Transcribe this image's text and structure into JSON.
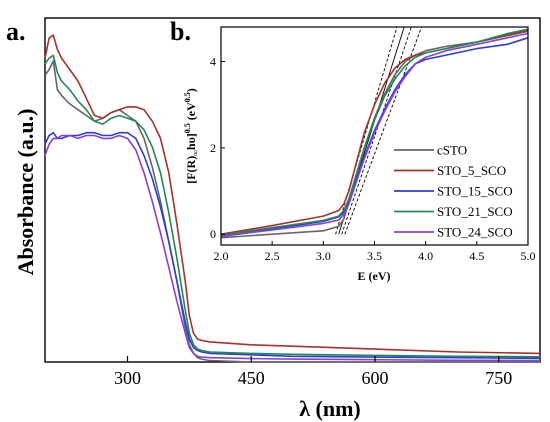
{
  "panel_labels": {
    "main": "a.",
    "inset": "b."
  },
  "chart_data": [
    {
      "type": "line",
      "xlabel": "λ (nm)",
      "ylabel": "Absorbance (a.u.)",
      "xlim": [
        200,
        800
      ],
      "ylim": [
        0,
        1.2
      ],
      "xticks": [
        300,
        450,
        600,
        750
      ],
      "yticks_shown": false,
      "series": [
        {
          "color": "#666666",
          "x": [
            200,
            205,
            210,
            215,
            220,
            230,
            240,
            250,
            260,
            270,
            280,
            290,
            300,
            310,
            320,
            330,
            340,
            350,
            360,
            370,
            375,
            380,
            385,
            390,
            400,
            450,
            500,
            600,
            700,
            800
          ],
          "y": [
            1.0,
            1.02,
            1.05,
            0.95,
            0.93,
            0.9,
            0.88,
            0.86,
            0.84,
            0.85,
            0.87,
            0.88,
            0.86,
            0.84,
            0.78,
            0.68,
            0.56,
            0.42,
            0.28,
            0.12,
            0.06,
            0.03,
            0.015,
            0.01,
            0.005,
            0.0,
            0.0,
            0.0,
            0.0,
            0.0
          ]
        },
        {
          "color": "#a83228",
          "x": [
            200,
            205,
            210,
            215,
            220,
            230,
            240,
            250,
            260,
            270,
            280,
            290,
            300,
            310,
            320,
            330,
            340,
            350,
            360,
            370,
            375,
            380,
            385,
            390,
            400,
            450,
            500,
            600,
            700,
            800
          ],
          "y": [
            1.06,
            1.13,
            1.14,
            1.09,
            1.06,
            1.02,
            0.98,
            0.92,
            0.86,
            0.85,
            0.87,
            0.88,
            0.89,
            0.89,
            0.88,
            0.84,
            0.78,
            0.66,
            0.48,
            0.28,
            0.16,
            0.1,
            0.08,
            0.075,
            0.07,
            0.06,
            0.055,
            0.045,
            0.035,
            0.03
          ]
        },
        {
          "color": "#2a3fd6",
          "x": [
            200,
            205,
            210,
            215,
            220,
            230,
            240,
            250,
            260,
            270,
            280,
            290,
            300,
            310,
            320,
            330,
            340,
            350,
            360,
            370,
            375,
            380,
            385,
            390,
            400,
            450,
            500,
            600,
            700,
            800
          ],
          "y": [
            0.76,
            0.79,
            0.8,
            0.78,
            0.78,
            0.79,
            0.79,
            0.8,
            0.8,
            0.79,
            0.79,
            0.8,
            0.8,
            0.78,
            0.72,
            0.64,
            0.54,
            0.42,
            0.28,
            0.14,
            0.08,
            0.05,
            0.04,
            0.035,
            0.03,
            0.025,
            0.02,
            0.017,
            0.015,
            0.013
          ]
        },
        {
          "color": "#1f8a55",
          "x": [
            200,
            205,
            210,
            215,
            220,
            230,
            240,
            250,
            260,
            270,
            280,
            290,
            300,
            310,
            320,
            330,
            340,
            350,
            360,
            370,
            375,
            380,
            385,
            390,
            400,
            450,
            500,
            600,
            700,
            800
          ],
          "y": [
            1.04,
            1.06,
            1.07,
            1.01,
            0.98,
            0.95,
            0.91,
            0.88,
            0.84,
            0.83,
            0.85,
            0.86,
            0.85,
            0.84,
            0.81,
            0.75,
            0.66,
            0.52,
            0.36,
            0.18,
            0.1,
            0.06,
            0.045,
            0.04,
            0.035,
            0.03,
            0.027,
            0.023,
            0.02,
            0.018
          ]
        },
        {
          "color": "#8a3ee0",
          "x": [
            200,
            205,
            210,
            215,
            220,
            230,
            240,
            250,
            260,
            270,
            280,
            290,
            300,
            310,
            320,
            330,
            340,
            350,
            360,
            370,
            375,
            380,
            385,
            390,
            400,
            450,
            500,
            600,
            700,
            800
          ],
          "y": [
            0.72,
            0.76,
            0.78,
            0.78,
            0.79,
            0.79,
            0.78,
            0.79,
            0.79,
            0.78,
            0.78,
            0.79,
            0.78,
            0.74,
            0.66,
            0.56,
            0.45,
            0.33,
            0.21,
            0.1,
            0.05,
            0.03,
            0.02,
            0.017,
            0.015,
            0.012,
            0.01,
            0.008,
            0.006,
            0.005
          ]
        }
      ]
    },
    {
      "type": "line",
      "xlabel": "E (eV)",
      "ylabel": "[F(R)∞hυ]^0.5 (eV^0.5)",
      "ylabel_parts": {
        "lead": "[F(R)",
        "sub": "∞",
        "mid": "hυ]",
        "sup1": "0.5",
        "unit": " (eV",
        "sup2": "0.5",
        "close": ")"
      },
      "xlim": [
        2.0,
        5.0
      ],
      "ylim": [
        -0.25,
        4.8
      ],
      "xticks": [
        2.0,
        2.5,
        3.0,
        3.5,
        4.0,
        4.5,
        5.0
      ],
      "yticks": [
        0,
        2,
        4
      ],
      "legend": {
        "position": "bottom-right",
        "entries": [
          "cSTO",
          "STO_5_SCO",
          "STO_15_SCO",
          "STO_21_SCO",
          "STO_24_SCO"
        ]
      },
      "series": [
        {
          "name": "cSTO",
          "color": "#666666",
          "x": [
            2.0,
            2.5,
            3.0,
            3.15,
            3.2,
            3.25,
            3.3,
            3.35,
            3.4,
            3.5,
            3.6,
            3.7,
            3.8,
            3.9,
            4.0,
            4.2,
            4.5,
            4.8,
            5.0
          ],
          "y": [
            -0.08,
            0.0,
            0.08,
            0.18,
            0.35,
            0.75,
            1.2,
            1.6,
            2.0,
            2.7,
            3.25,
            3.7,
            4.0,
            4.15,
            4.25,
            4.35,
            4.45,
            4.6,
            4.7
          ]
        },
        {
          "name": "STO_5_SCO",
          "color": "#a83228",
          "x": [
            2.0,
            2.5,
            3.0,
            3.15,
            3.2,
            3.25,
            3.3,
            3.35,
            3.4,
            3.5,
            3.6,
            3.7,
            3.8,
            3.9,
            4.0,
            4.2,
            4.5,
            4.8,
            5.0
          ],
          "y": [
            0.0,
            0.2,
            0.42,
            0.55,
            0.7,
            1.0,
            1.45,
            1.9,
            2.35,
            3.0,
            3.5,
            3.85,
            4.05,
            4.15,
            4.2,
            4.3,
            4.45,
            4.62,
            4.72
          ]
        },
        {
          "name": "STO_15_SCO",
          "color": "#2a3fd6",
          "x": [
            2.0,
            2.5,
            3.0,
            3.15,
            3.2,
            3.25,
            3.3,
            3.35,
            3.4,
            3.5,
            3.6,
            3.7,
            3.8,
            3.9,
            4.0,
            4.2,
            4.5,
            4.8,
            5.0
          ],
          "y": [
            -0.05,
            0.12,
            0.3,
            0.4,
            0.5,
            0.75,
            1.1,
            1.45,
            1.8,
            2.4,
            2.9,
            3.35,
            3.7,
            3.95,
            4.05,
            4.15,
            4.3,
            4.4,
            4.55
          ]
        },
        {
          "name": "STO_21_SCO",
          "color": "#1f8a55",
          "x": [
            2.0,
            2.5,
            3.0,
            3.15,
            3.2,
            3.25,
            3.3,
            3.35,
            3.4,
            3.5,
            3.6,
            3.7,
            3.8,
            3.9,
            4.0,
            4.2,
            4.5,
            4.8,
            5.0
          ],
          "y": [
            -0.02,
            0.15,
            0.32,
            0.42,
            0.55,
            0.82,
            1.2,
            1.6,
            2.0,
            2.65,
            3.2,
            3.6,
            3.9,
            4.1,
            4.2,
            4.3,
            4.45,
            4.65,
            4.75
          ]
        },
        {
          "name": "STO_24_SCO",
          "color": "#8a3ee0",
          "x": [
            2.0,
            2.5,
            3.0,
            3.15,
            3.2,
            3.25,
            3.3,
            3.35,
            3.4,
            3.5,
            3.6,
            3.7,
            3.8,
            3.9,
            4.0,
            4.2,
            4.5,
            4.8,
            5.0
          ],
          "y": [
            -0.05,
            0.1,
            0.25,
            0.33,
            0.45,
            0.7,
            1.05,
            1.4,
            1.75,
            2.35,
            2.85,
            3.3,
            3.65,
            3.95,
            4.1,
            4.25,
            4.4,
            4.55,
            4.65
          ]
        }
      ],
      "tangent_lines": [
        {
          "style": "dashed",
          "x": [
            3.12,
            3.72
          ],
          "y": [
            0.0,
            4.8
          ]
        },
        {
          "style": "solid",
          "x": [
            3.15,
            3.79
          ],
          "y": [
            0.0,
            4.8
          ]
        },
        {
          "style": "dashed",
          "x": [
            3.18,
            3.86
          ],
          "y": [
            0.0,
            4.8
          ]
        },
        {
          "style": "dashed",
          "x": [
            3.21,
            3.96
          ],
          "y": [
            0.0,
            4.8
          ]
        }
      ]
    }
  ]
}
